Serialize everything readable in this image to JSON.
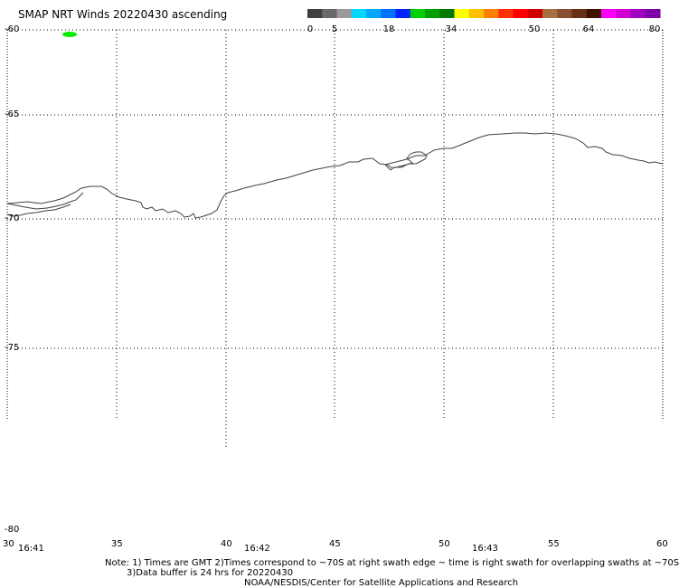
{
  "title": "SMAP NRT Winds 20220430 ascending",
  "colorbar": {
    "labels": [
      "0",
      "5",
      "18",
      "34",
      "50",
      "64",
      "80"
    ],
    "colors": [
      "#404040",
      "#6a6a6a",
      "#9a9a9a",
      "#00d8ff",
      "#00a8ff",
      "#0070ff",
      "#0020ff",
      "#00d000",
      "#00a000",
      "#007800",
      "#ffff00",
      "#ffc000",
      "#ff8000",
      "#ff3000",
      "#ff0000",
      "#d00000",
      "#a87040",
      "#885030",
      "#683018",
      "#401000",
      "#ff00ff",
      "#d000d0",
      "#a000c0",
      "#8000a8"
    ]
  },
  "axes": {
    "lat_labels": [
      "-60",
      "-65",
      "-70",
      "-75",
      "-80"
    ],
    "lon_labels": [
      "30",
      "35",
      "40",
      "45",
      "50",
      "55",
      "60"
    ],
    "time_labels": [
      "16:41",
      "16:42",
      "16:43"
    ]
  },
  "notes": {
    "line1": "Note: 1) Times are GMT 2)Times correspond to ~70S at right swath edge ~ time is right swath for overlapping swaths at ~70S",
    "line2": "3)Data buffer is 24 hrs for 20220430",
    "line3": "NOAA/NESDIS/Center for Satellite Applications and Research"
  },
  "colors": {
    "coastline": "#404040",
    "grid": "#000000",
    "swath": "#00ee00"
  }
}
